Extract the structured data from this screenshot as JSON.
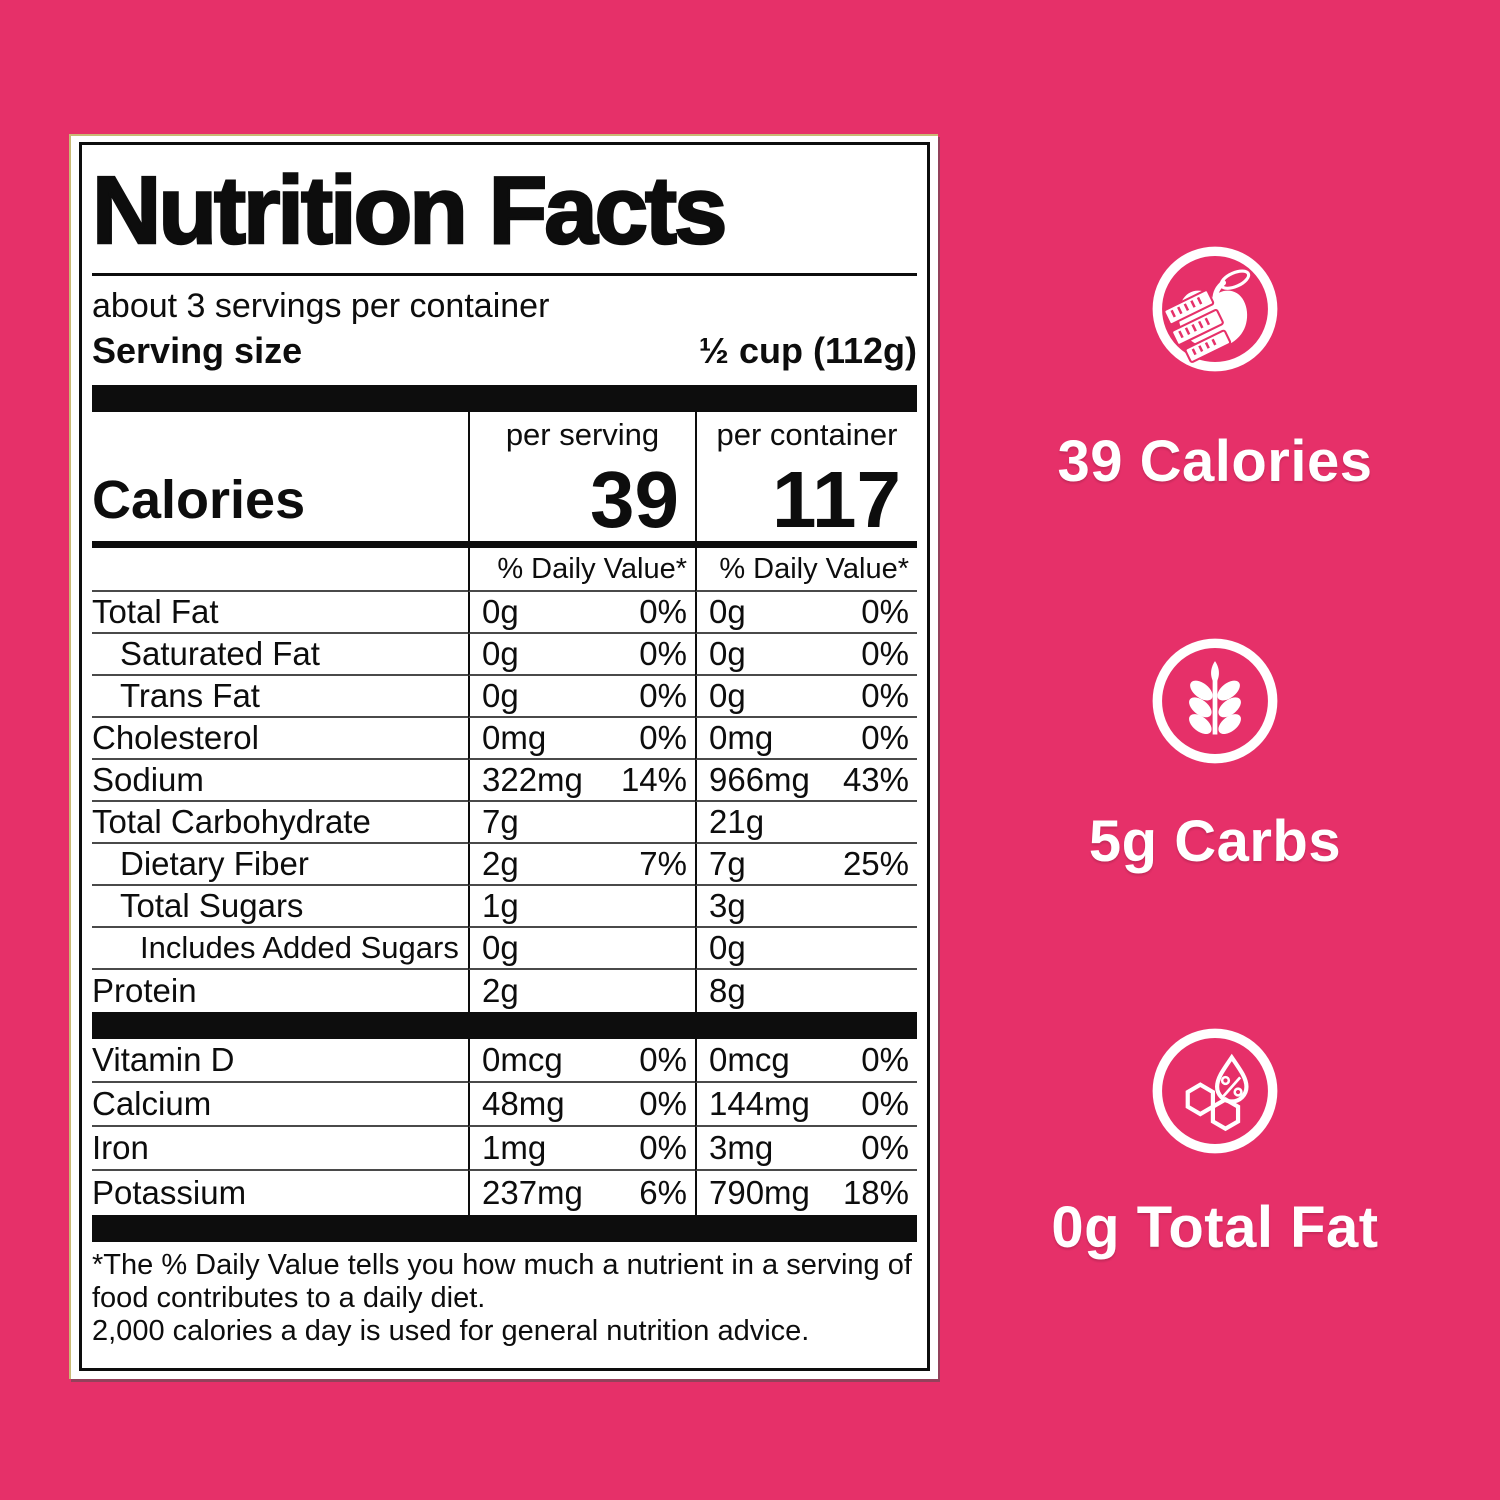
{
  "colors": {
    "background_pink": "#E63069",
    "label_black": "#0D0D0D",
    "label_white": "#FFFFFF"
  },
  "label": {
    "title": "Nutrition Facts",
    "servings_per_container": "about 3 servings per container",
    "serving_size_label": "Serving size",
    "serving_size_value": "½ cup (112g)",
    "calories": {
      "per_serving_header": "per serving",
      "per_container_header": "per container",
      "label": "Calories",
      "per_serving": "39",
      "per_container": "117"
    },
    "daily_value_header": "% Daily Value*",
    "nutrients": [
      {
        "name": "Total Fat",
        "indent": 0,
        "serving_amount": "0g",
        "serving_dv": "0%",
        "container_amount": "0g",
        "container_dv": "0%"
      },
      {
        "name": "Saturated Fat",
        "indent": 1,
        "serving_amount": "0g",
        "serving_dv": "0%",
        "container_amount": "0g",
        "container_dv": "0%"
      },
      {
        "name": "Trans Fat",
        "indent": 1,
        "serving_amount": "0g",
        "serving_dv": "0%",
        "container_amount": "0g",
        "container_dv": "0%"
      },
      {
        "name": "Cholesterol",
        "indent": 0,
        "serving_amount": "0mg",
        "serving_dv": "0%",
        "container_amount": "0mg",
        "container_dv": "0%"
      },
      {
        "name": "Sodium",
        "indent": 0,
        "serving_amount": "322mg",
        "serving_dv": "14%",
        "container_amount": "966mg",
        "container_dv": "43%"
      },
      {
        "name": "Total Carbohydrate",
        "indent": 0,
        "serving_amount": "7g",
        "serving_dv": "",
        "container_amount": "21g",
        "container_dv": ""
      },
      {
        "name": "Dietary Fiber",
        "indent": 1,
        "serving_amount": "2g",
        "serving_dv": "7%",
        "container_amount": "7g",
        "container_dv": "25%"
      },
      {
        "name": "Total Sugars",
        "indent": 1,
        "serving_amount": "1g",
        "serving_dv": "",
        "container_amount": "3g",
        "container_dv": ""
      },
      {
        "name": "Includes Added Sugars",
        "indent": 2,
        "serving_amount": "0g",
        "serving_dv": "",
        "container_amount": "0g",
        "container_dv": ""
      },
      {
        "name": "Protein",
        "indent": 0,
        "serving_amount": "2g",
        "serving_dv": "",
        "container_amount": "8g",
        "container_dv": ""
      }
    ],
    "vitamins": [
      {
        "name": "Vitamin D",
        "serving_amount": "0mcg",
        "serving_dv": "0%",
        "container_amount": "0mcg",
        "container_dv": "0%"
      },
      {
        "name": "Calcium",
        "serving_amount": "48mg",
        "serving_dv": "0%",
        "container_amount": "144mg",
        "container_dv": "0%"
      },
      {
        "name": "Iron",
        "serving_amount": "1mg",
        "serving_dv": "0%",
        "container_amount": "3mg",
        "container_dv": "0%"
      },
      {
        "name": "Potassium",
        "serving_amount": "237mg",
        "serving_dv": "6%",
        "container_amount": "790mg",
        "container_dv": "18%"
      }
    ],
    "footnote_line1": "*The % Daily Value tells you how much a nutrient in a serving of food contributes to a daily diet.",
    "footnote_line2": "2,000 calories a day is used for general nutrition advice."
  },
  "highlights": {
    "items": [
      {
        "icon": "apple-measuring-tape-icon",
        "label": "39 Calories"
      },
      {
        "icon": "wheat-icon",
        "label": "5g Carbs"
      },
      {
        "icon": "fat-percentage-icon",
        "label": "0g Total Fat"
      }
    ]
  }
}
